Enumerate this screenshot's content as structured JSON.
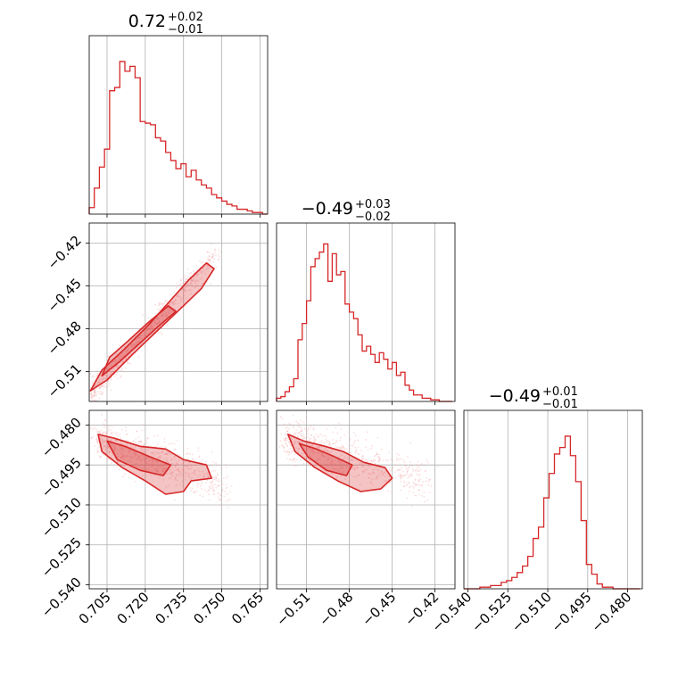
{
  "colors": {
    "accent": "#d62728",
    "fill_light": "#f4a3a5",
    "grid": "#b0b0b0"
  },
  "chart_data": [
    {
      "type": "histogram",
      "panel": "diag-1",
      "title_main": "0.72",
      "title_sup": "+0.02",
      "title_sub": "−0.01",
      "xlim": [
        0.698,
        0.768
      ],
      "bins": [
        0.698,
        0.7,
        0.702,
        0.704,
        0.706,
        0.708,
        0.71,
        0.712,
        0.714,
        0.716,
        0.718,
        0.72,
        0.722,
        0.724,
        0.726,
        0.728,
        0.73,
        0.732,
        0.734,
        0.736,
        0.738,
        0.74,
        0.742,
        0.744,
        0.746,
        0.748,
        0.75,
        0.752,
        0.754,
        0.756,
        0.758,
        0.76,
        0.762,
        0.764,
        0.766,
        0.768
      ],
      "counts": [
        0.04,
        0.16,
        0.29,
        0.4,
        0.76,
        0.78,
        0.94,
        0.88,
        0.91,
        0.84,
        0.57,
        0.56,
        0.55,
        0.47,
        0.45,
        0.38,
        0.33,
        0.28,
        0.31,
        0.23,
        0.27,
        0.21,
        0.18,
        0.16,
        0.12,
        0.1,
        0.08,
        0.06,
        0.05,
        0.03,
        0.03,
        0.02,
        0.01,
        0.01,
        0.0
      ],
      "xticks": [
        0.705,
        0.72,
        0.735,
        0.75,
        0.765
      ]
    },
    {
      "type": "histogram",
      "panel": "diag-2",
      "title_main": "−0.49",
      "title_sup": "+0.03",
      "title_sub": "−0.02",
      "xlim": [
        -0.531,
        -0.406
      ],
      "bins": [
        -0.531,
        -0.528,
        -0.525,
        -0.522,
        -0.519,
        -0.516,
        -0.513,
        -0.51,
        -0.507,
        -0.504,
        -0.501,
        -0.498,
        -0.495,
        -0.492,
        -0.489,
        -0.486,
        -0.483,
        -0.48,
        -0.477,
        -0.474,
        -0.471,
        -0.468,
        -0.465,
        -0.462,
        -0.459,
        -0.456,
        -0.453,
        -0.45,
        -0.447,
        -0.444,
        -0.441,
        -0.438,
        -0.435,
        -0.432,
        -0.429,
        -0.426,
        -0.423,
        -0.42,
        -0.417,
        -0.414,
        -0.411,
        -0.408
      ],
      "counts": [
        0.02,
        0.03,
        0.06,
        0.09,
        0.14,
        0.38,
        0.48,
        0.62,
        0.83,
        0.88,
        0.92,
        0.97,
        0.74,
        0.91,
        0.78,
        0.8,
        0.6,
        0.55,
        0.51,
        0.41,
        0.31,
        0.34,
        0.29,
        0.24,
        0.3,
        0.26,
        0.2,
        0.24,
        0.16,
        0.18,
        0.1,
        0.07,
        0.04,
        0.04,
        0.02,
        0.02,
        0.01,
        0.01,
        0.0,
        0.0,
        0.0
      ],
      "xticks": [
        -0.51,
        -0.48,
        -0.45,
        -0.42
      ]
    },
    {
      "type": "histogram",
      "panel": "diag-3",
      "title_main": "−0.49",
      "title_sup": "+0.01",
      "title_sub": "−0.01",
      "xlim": [
        -0.5415,
        -0.4745
      ],
      "bins": [
        -0.5415,
        -0.5395,
        -0.5375,
        -0.5355,
        -0.5335,
        -0.5315,
        -0.5295,
        -0.5275,
        -0.5255,
        -0.5235,
        -0.5215,
        -0.5195,
        -0.5175,
        -0.5155,
        -0.5135,
        -0.5115,
        -0.5095,
        -0.5075,
        -0.5055,
        -0.5035,
        -0.5015,
        -0.4995,
        -0.4975,
        -0.4955,
        -0.4935,
        -0.4915,
        -0.4895,
        -0.4875,
        -0.4855,
        -0.4835,
        -0.4815,
        -0.4795,
        -0.4775,
        -0.4755
      ],
      "counts": [
        0.0,
        0.0,
        0.0,
        0.01,
        0.01,
        0.02,
        0.02,
        0.04,
        0.05,
        0.07,
        0.1,
        0.14,
        0.2,
        0.31,
        0.38,
        0.56,
        0.71,
        0.83,
        0.87,
        0.94,
        0.82,
        0.66,
        0.42,
        0.15,
        0.09,
        0.03,
        0.01,
        0.01,
        0.0,
        0.0,
        0.0,
        0.0,
        0.0
      ],
      "xticks": [
        -0.54,
        -0.525,
        -0.51,
        -0.495,
        -0.48
      ]
    },
    {
      "type": "contour-scatter",
      "panel": "pair-2-1",
      "x_param": 1,
      "y_param": 2,
      "xlim": [
        0.698,
        0.768
      ],
      "ylim": [
        -0.531,
        -0.406
      ],
      "yticks": [
        -0.42,
        -0.45,
        -0.48,
        -0.51
      ],
      "correlation": "positive"
    },
    {
      "type": "contour-scatter",
      "panel": "pair-3-1",
      "x_param": 1,
      "y_param": 3,
      "xlim": [
        0.698,
        0.768
      ],
      "ylim": [
        -0.5415,
        -0.4745
      ],
      "yticks": [
        -0.48,
        -0.495,
        -0.51,
        -0.525,
        -0.54
      ],
      "correlation": "negative"
    },
    {
      "type": "contour-scatter",
      "panel": "pair-3-2",
      "x_param": 2,
      "y_param": 3,
      "xlim": [
        -0.531,
        -0.406
      ],
      "ylim": [
        -0.5415,
        -0.4745
      ],
      "correlation": "negative"
    }
  ],
  "tick_labels": {
    "col1": [
      "0.705",
      "0.720",
      "0.735",
      "0.750",
      "0.765"
    ],
    "col2": [
      "−0.51",
      "−0.48",
      "−0.45",
      "−0.42"
    ],
    "col3": [
      "−0.540",
      "−0.525",
      "−0.510",
      "−0.495",
      "−0.480"
    ],
    "row2": [
      "−0.42",
      "−0.45",
      "−0.48",
      "−0.51"
    ],
    "row3": [
      "−0.480",
      "−0.495",
      "−0.510",
      "−0.525",
      "−0.540"
    ]
  }
}
